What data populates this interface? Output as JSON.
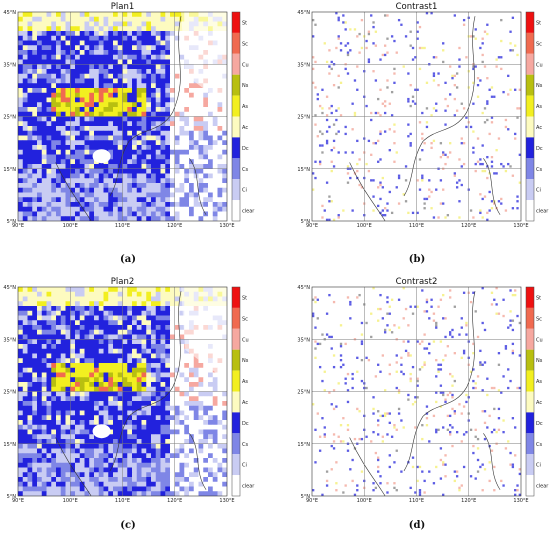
{
  "panels": [
    {
      "title": "Plan1",
      "caption": "(a)",
      "kind": "plan"
    },
    {
      "title": "Contrast1",
      "caption": "(b)",
      "kind": "contrast"
    },
    {
      "title": "Plan2",
      "caption": "(c)",
      "kind": "plan"
    },
    {
      "title": "Contrast2",
      "caption": "(d)",
      "kind": "contrast"
    }
  ],
  "lat_ticks": [
    "45°N",
    "35°N",
    "25°N",
    "15°N",
    "5°N"
  ],
  "lon_ticks": [
    "90°E",
    "100°E",
    "110°E",
    "120°E",
    "130°E"
  ],
  "colorbar": [
    {
      "label": "St",
      "color": "#ee1111"
    },
    {
      "label": "Sc",
      "color": "#f06a50"
    },
    {
      "label": "Cu",
      "color": "#f6a8a0"
    },
    {
      "label": "Ns",
      "color": "#b8bf10"
    },
    {
      "label": "As",
      "color": "#f2ef20"
    },
    {
      "label": "Ac",
      "color": "#fdfbc0"
    },
    {
      "label": "Dc",
      "color": "#2222dd"
    },
    {
      "label": "Cs",
      "color": "#7f86e6"
    },
    {
      "label": "Ci",
      "color": "#c9ccf3"
    },
    {
      "label": "clear",
      "color": "#ffffff"
    }
  ]
}
